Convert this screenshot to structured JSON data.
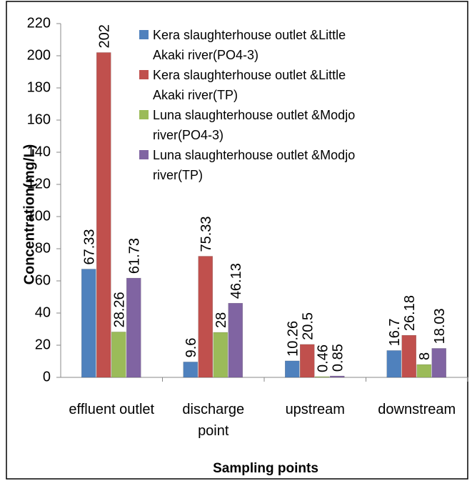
{
  "chart_data": {
    "type": "bar",
    "x_label": "Sampling points",
    "y_label": "Concentration(mg/L)",
    "categories": [
      "effluent outlet",
      "discharge point",
      "upstream",
      "downstream"
    ],
    "series": [
      {
        "name": "Kera slaughterhouse outlet &Little Akaki river(PO4-3)",
        "color": "#4f81bd",
        "values": [
          67.33,
          9.6,
          10.26,
          16.7
        ]
      },
      {
        "name": "Kera slaughterhouse outlet &Little Akaki river(TP)",
        "color": "#c0504d",
        "values": [
          202,
          75.33,
          20.5,
          26.18
        ]
      },
      {
        "name": "Luna slaughterhouse outlet &Modjo river(PO4-3)",
        "color": "#9bbb59",
        "values": [
          28.26,
          28,
          0.46,
          8
        ]
      },
      {
        "name": "Luna slaughterhouse outlet &Modjo river(TP)",
        "color": "#8064a2",
        "values": [
          61.73,
          46.13,
          0.85,
          18.03
        ]
      }
    ],
    "ylim": [
      0,
      220
    ],
    "yticks": [
      0,
      20,
      40,
      60,
      80,
      100,
      120,
      140,
      160,
      180,
      200,
      220
    ],
    "grid": false,
    "legend": "top"
  }
}
